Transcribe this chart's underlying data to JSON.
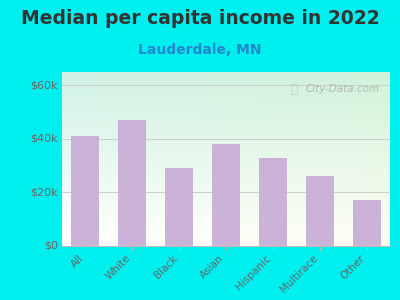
{
  "title": "Median per capita income in 2022",
  "subtitle": "Lauderdale, MN",
  "categories": [
    "All",
    "White",
    "Black",
    "Asian",
    "Hispanic",
    "Multirace",
    "Other"
  ],
  "values": [
    41000,
    47000,
    29000,
    38000,
    33000,
    26000,
    17000
  ],
  "bar_color": "#c9aed6",
  "background_outer": "#00efef",
  "title_color": "#333333",
  "subtitle_color": "#2288cc",
  "tick_color": "#666666",
  "yticks": [
    0,
    20000,
    40000,
    60000
  ],
  "ytick_labels": [
    "$0",
    "$20k",
    "$40k",
    "$60k"
  ],
  "ylim": [
    0,
    65000
  ],
  "watermark": "City-Data.com",
  "title_fontsize": 13.5,
  "subtitle_fontsize": 10
}
